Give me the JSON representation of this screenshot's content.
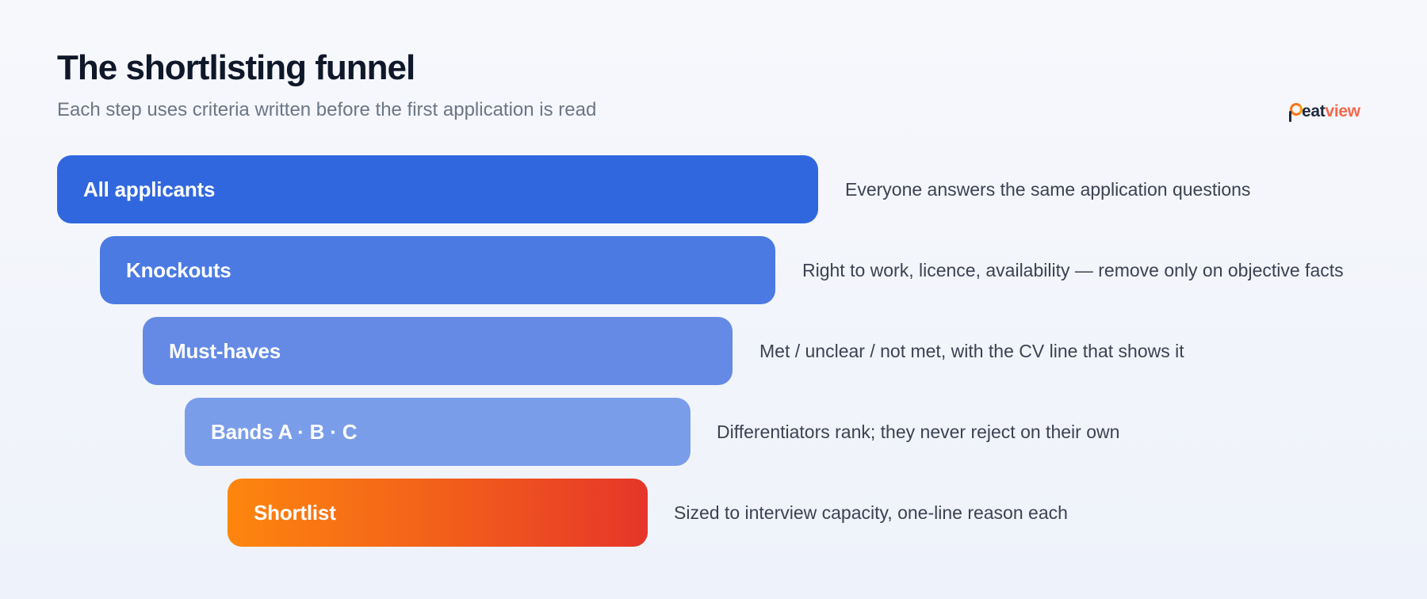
{
  "header": {
    "title": "The shortlisting funnel",
    "subtitle": "Each step uses criteria written before the first application is read"
  },
  "logo": {
    "text_dark": "eat",
    "text_accent": "view",
    "mark_icon": "beatview-logo-mark-icon",
    "colors": {
      "dark": "#1e293b",
      "accent": "#f4674a"
    }
  },
  "funnel": {
    "stages": [
      {
        "label": "All applicants",
        "description": "Everyone answers the same application questions",
        "color": "#3167de"
      },
      {
        "label": "Knockouts",
        "description": "Right to work, licence, availability — remove only on objective facts",
        "color": "#4b7ae2"
      },
      {
        "label": "Must-haves",
        "description": "Met / unclear / not met, with the CV line that shows it",
        "color": "#648ae5"
      },
      {
        "label": "Bands A · B · C",
        "description": "Differentiators rank; they never reject on their own",
        "color": "#7a9de9"
      },
      {
        "label": "Shortlist",
        "description": "Sized to interview capacity, one-line reason each",
        "color_start": "#fd860e",
        "color_end": "#e6352a"
      }
    ]
  }
}
